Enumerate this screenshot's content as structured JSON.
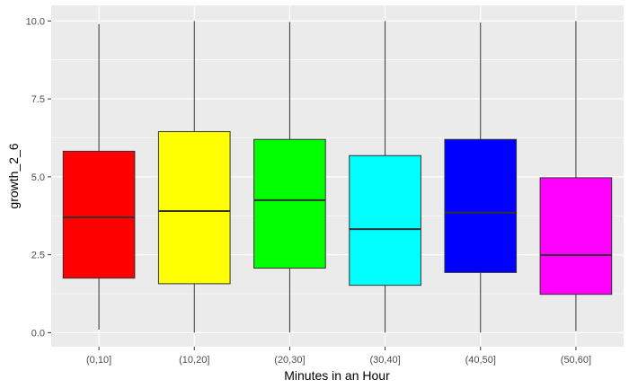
{
  "chart_data": {
    "type": "boxplot",
    "categories": [
      "(0,10]",
      "(10,20]",
      "(20,30]",
      "(30,40]",
      "(40,50]",
      "(50,60]"
    ],
    "boxes": [
      {
        "category": "(0,10]",
        "min": 0.1,
        "q1": 1.75,
        "median": 3.7,
        "q3": 5.82,
        "max": 9.9,
        "fill": "#FF0000"
      },
      {
        "category": "(10,20]",
        "min": 0.0,
        "q1": 1.57,
        "median": 3.9,
        "q3": 6.45,
        "max": 10.0,
        "fill": "#FFFF00"
      },
      {
        "category": "(20,30]",
        "min": 0.0,
        "q1": 2.07,
        "median": 4.25,
        "q3": 6.2,
        "max": 9.97,
        "fill": "#00FF00"
      },
      {
        "category": "(30,40]",
        "min": 0.0,
        "q1": 1.52,
        "median": 3.32,
        "q3": 5.68,
        "max": 10.0,
        "fill": "#00FFFF"
      },
      {
        "category": "(40,50]",
        "min": 0.0,
        "q1": 1.93,
        "median": 3.85,
        "q3": 6.2,
        "max": 9.95,
        "fill": "#0000FF"
      },
      {
        "category": "(50,60]",
        "min": 0.05,
        "q1": 1.23,
        "median": 2.49,
        "q3": 4.97,
        "max": 10.0,
        "fill": "#FF00FF"
      }
    ],
    "xlabel": "Minutes in an Hour",
    "ylabel": "growth_2_6",
    "yticks": [
      "0.0",
      "2.5",
      "5.0",
      "7.5",
      "10.0"
    ],
    "ylim": [
      -0.45,
      10.5
    ],
    "grid": true,
    "panel_background": "#EBEBEB",
    "grid_color": "#FFFFFF",
    "box_outline_color": "#333333"
  }
}
